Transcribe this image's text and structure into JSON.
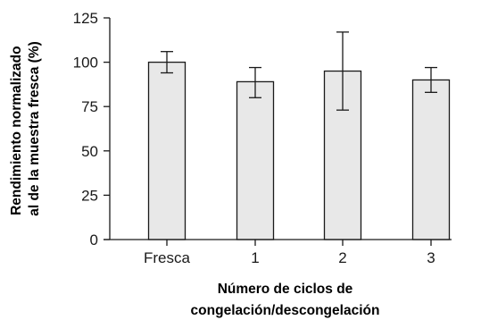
{
  "chart_data": {
    "type": "bar",
    "categories": [
      "Fresca",
      "1",
      "2",
      "3"
    ],
    "values": [
      100,
      89,
      95,
      90
    ],
    "error_bars": [
      {
        "low": 94,
        "high": 106
      },
      {
        "low": 80,
        "high": 97
      },
      {
        "low": 73,
        "high": 117
      },
      {
        "low": 83,
        "high": 97
      }
    ],
    "ylim": [
      0,
      125
    ],
    "yticks": [
      0,
      25,
      50,
      75,
      100,
      125
    ],
    "ylabel_lines": [
      "Rendimiento normalizado",
      "al de la muestra fresca (%)"
    ],
    "xlabel_lines": [
      "Número de ciclos de",
      "congelación/descongelación"
    ],
    "grid": false,
    "bar_fill": "#e8e8e8",
    "bar_stroke": "#1a1a1a"
  }
}
